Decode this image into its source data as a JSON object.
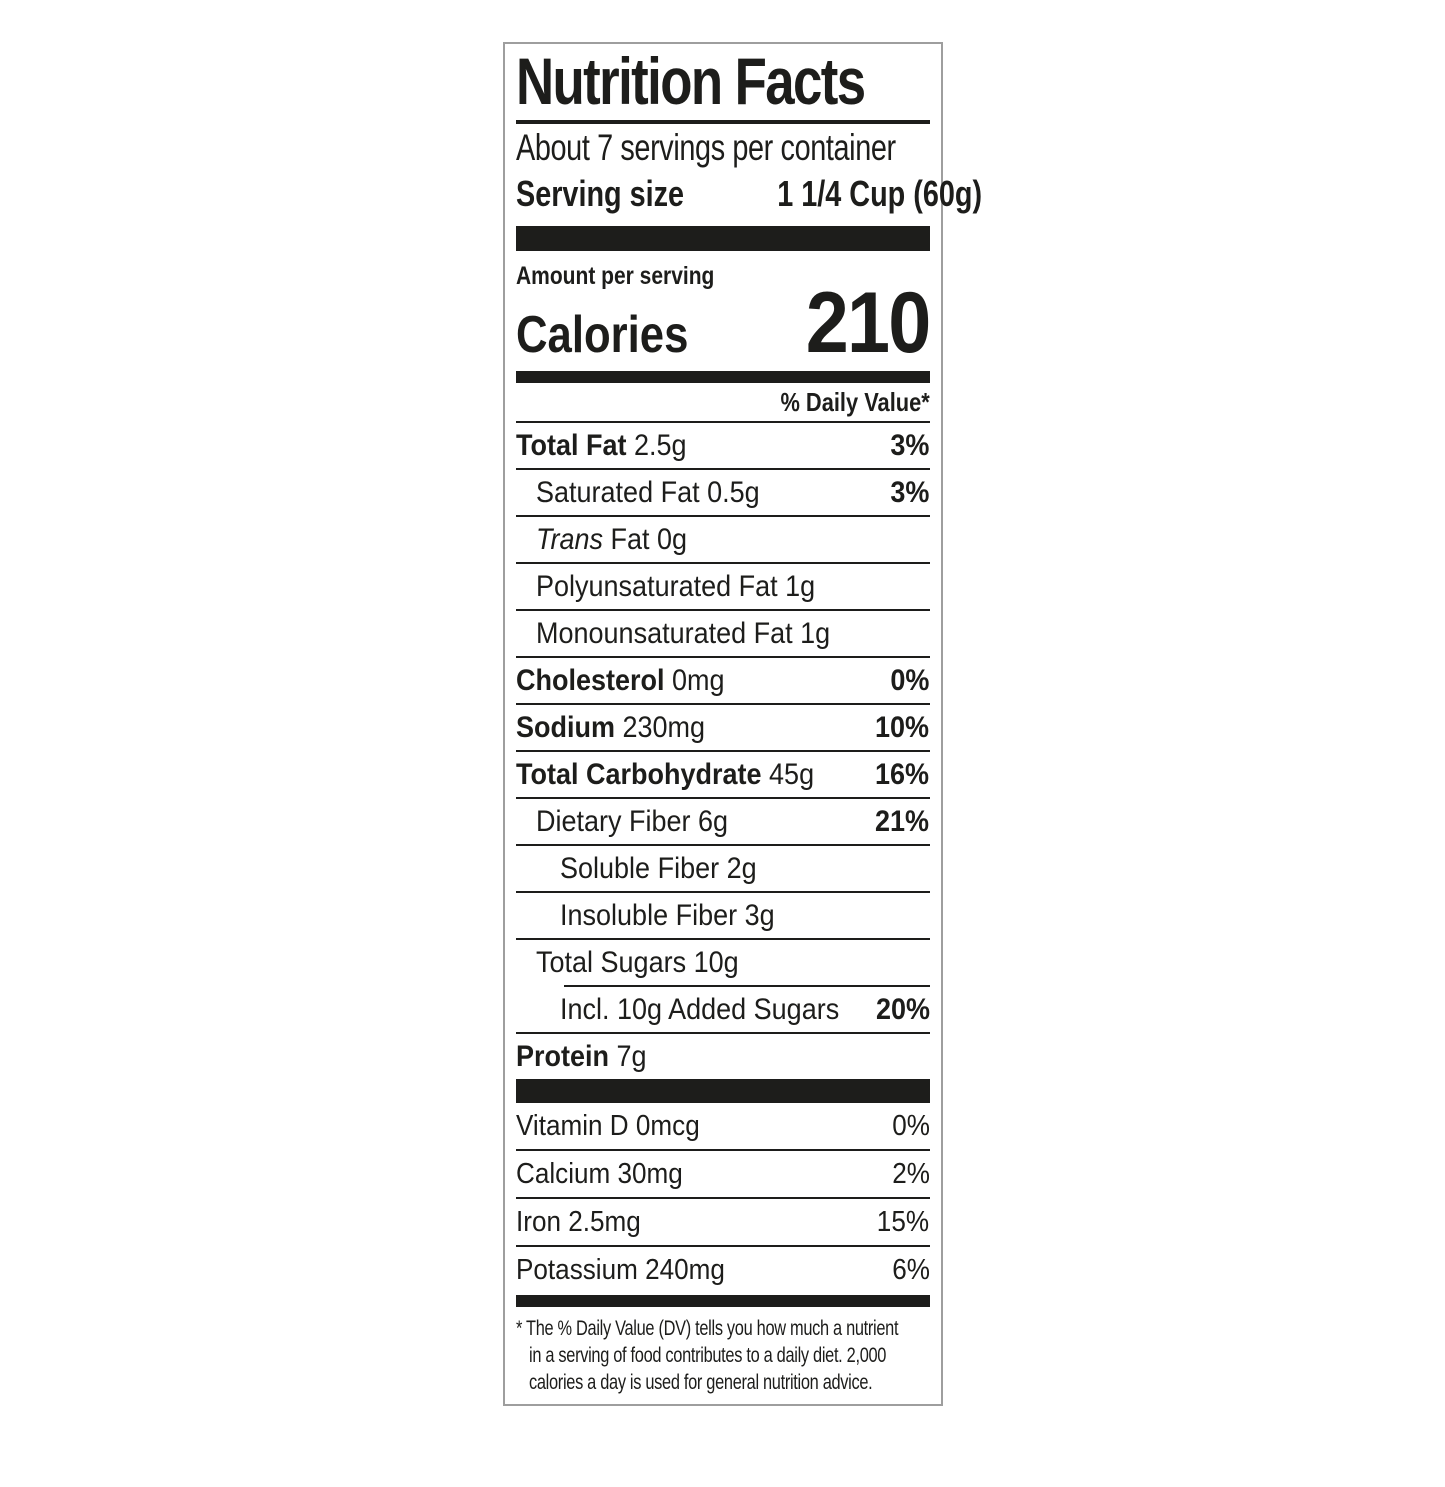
{
  "colors": {
    "text": "#1d1d1b",
    "frame": "#9e9e9e",
    "bar": "#1d1d1b"
  },
  "label": {
    "title": "Nutrition Facts",
    "servings_per_container": "About 7 servings per container",
    "serving_size_label": "Serving size",
    "serving_size_value": "1 1/4 Cup (60g)",
    "amount_per_serving": "Amount per serving",
    "calories_label": "Calories",
    "calories_value": "210",
    "daily_value_header": "% Daily Value*",
    "nutrients": [
      {
        "bold": "Total Fat",
        "regular": "2.5g",
        "dv": "3%",
        "dv_bold": true,
        "indent": 0,
        "sep": "full"
      },
      {
        "regular": "Saturated Fat 0.5g",
        "dv": "3%",
        "dv_bold": true,
        "indent": 1,
        "sep": "full"
      },
      {
        "italic": "Trans",
        "regular": "Fat 0g",
        "dv": "",
        "indent": 1,
        "sep": "full"
      },
      {
        "regular": "Polyunsaturated Fat 1g",
        "dv": "",
        "indent": 1,
        "sep": "full"
      },
      {
        "regular": "Monounsaturated Fat 1g",
        "dv": "",
        "indent": 1,
        "sep": "full"
      },
      {
        "bold": "Cholesterol",
        "regular": "0mg",
        "dv": "0%",
        "dv_bold": true,
        "indent": 0,
        "sep": "full"
      },
      {
        "bold": "Sodium",
        "regular": "230mg",
        "dv": "10%",
        "dv_bold": true,
        "indent": 0,
        "sep": "full"
      },
      {
        "bold": "Total Carbohydrate",
        "regular": "45g",
        "dv": "16%",
        "dv_bold": true,
        "indent": 0,
        "sep": "full"
      },
      {
        "regular": "Dietary Fiber 6g",
        "dv": "21%",
        "dv_bold": true,
        "indent": 1,
        "sep": "full"
      },
      {
        "regular": "Soluble Fiber 2g",
        "dv": "",
        "indent": 2,
        "sep": "full"
      },
      {
        "regular": "Insoluble Fiber 3g",
        "dv": "",
        "indent": 2,
        "sep": "full"
      },
      {
        "regular": "Total Sugars 10g",
        "dv": "",
        "indent": 1,
        "sep": "indent"
      },
      {
        "regular": "Incl. 10g Added Sugars",
        "dv": "20%",
        "dv_bold": true,
        "indent": 2,
        "sep": "full"
      },
      {
        "bold": "Protein",
        "regular": "7g",
        "dv": "",
        "indent": 0,
        "sep": "none"
      }
    ],
    "vitamins": [
      {
        "name": "Vitamin D 0mcg",
        "dv": "0%",
        "sep": "full"
      },
      {
        "name": "Calcium 30mg",
        "dv": "2%",
        "sep": "full"
      },
      {
        "name": "Iron 2.5mg",
        "dv": "15%",
        "sep": "full"
      },
      {
        "name": "Potassium 240mg",
        "dv": "6%",
        "sep": "none"
      }
    ],
    "footnote_lines": [
      "* The % Daily Value (DV) tells you how much a nutrient",
      "in a serving of food contributes to a daily diet. 2,000",
      "calories a day is used for general nutrition advice."
    ]
  }
}
